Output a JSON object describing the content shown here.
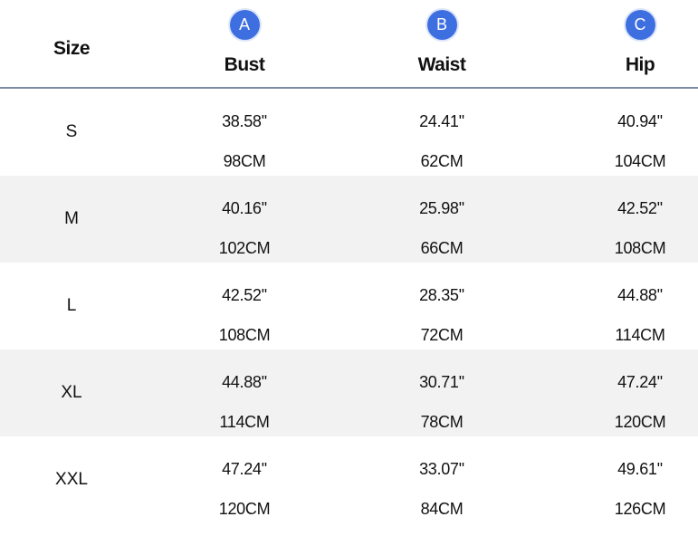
{
  "table": {
    "size_header": "Size",
    "columns": [
      {
        "letter": "A",
        "label": "Bust"
      },
      {
        "letter": "B",
        "label": "Waist"
      },
      {
        "letter": "C",
        "label": "Hip"
      }
    ],
    "rows": [
      {
        "size": "S",
        "bust_in": "38.58''",
        "bust_cm": "98CM",
        "waist_in": "24.41''",
        "waist_cm": "62CM",
        "hip_in": "40.94''",
        "hip_cm": "104CM"
      },
      {
        "size": "M",
        "bust_in": "40.16''",
        "bust_cm": "102CM",
        "waist_in": "25.98''",
        "waist_cm": "66CM",
        "hip_in": "42.52''",
        "hip_cm": "108CM"
      },
      {
        "size": "L",
        "bust_in": "42.52''",
        "bust_cm": "108CM",
        "waist_in": "28.35''",
        "waist_cm": "72CM",
        "hip_in": "44.88''",
        "hip_cm": "114CM"
      },
      {
        "size": "XL",
        "bust_in": "44.88''",
        "bust_cm": "114CM",
        "waist_in": "30.71''",
        "waist_cm": "78CM",
        "hip_in": "47.24''",
        "hip_cm": "120CM"
      },
      {
        "size": "XXL",
        "bust_in": "47.24''",
        "bust_cm": "120CM",
        "waist_in": "33.07''",
        "waist_cm": "84CM",
        "hip_in": "49.61''",
        "hip_cm": "126CM"
      }
    ]
  },
  "colors": {
    "badge": "#3e6fe0",
    "divider": "#7d8aa6",
    "shaded_row": "#f2f2f2"
  }
}
